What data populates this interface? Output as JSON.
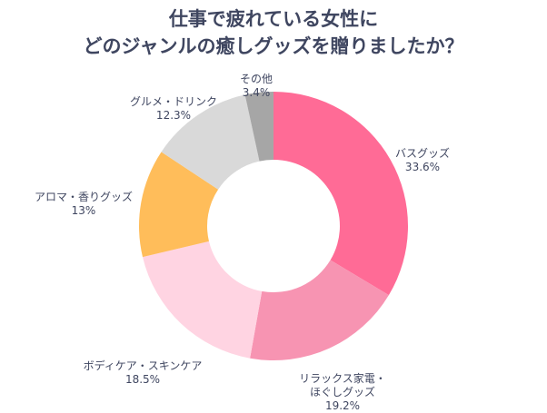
{
  "chart_data": {
    "type": "pie",
    "donut": true,
    "title": [
      "仕事で疲れている女性に",
      "どのジャンルの癒しグッズを贈りましたか？"
    ],
    "unit": "%",
    "slices": [
      {
        "label": "バスグッズ",
        "value": 33.6,
        "value_label": "33.6%",
        "color": "#ff6b96"
      },
      {
        "label": "リラックス家電・\nほぐしグッズ",
        "value": 19.2,
        "value_label": "19.2%",
        "color": "#f794b2"
      },
      {
        "label": "ボディケア・スキンケア",
        "value": 18.5,
        "value_label": "18.5%",
        "color": "#ffd4e2"
      },
      {
        "label": "アロマ・香りグッズ",
        "value": 13,
        "value_label": "13%",
        "color": "#ffbd5a"
      },
      {
        "label": "グルメ・ドリンク",
        "value": 12.3,
        "value_label": "12.3%",
        "color": "#d9d9d9"
      },
      {
        "label": "その他",
        "value": 3.4,
        "value_label": "3.4%",
        "color": "#a6a6a6"
      }
    ],
    "legend": "none"
  }
}
